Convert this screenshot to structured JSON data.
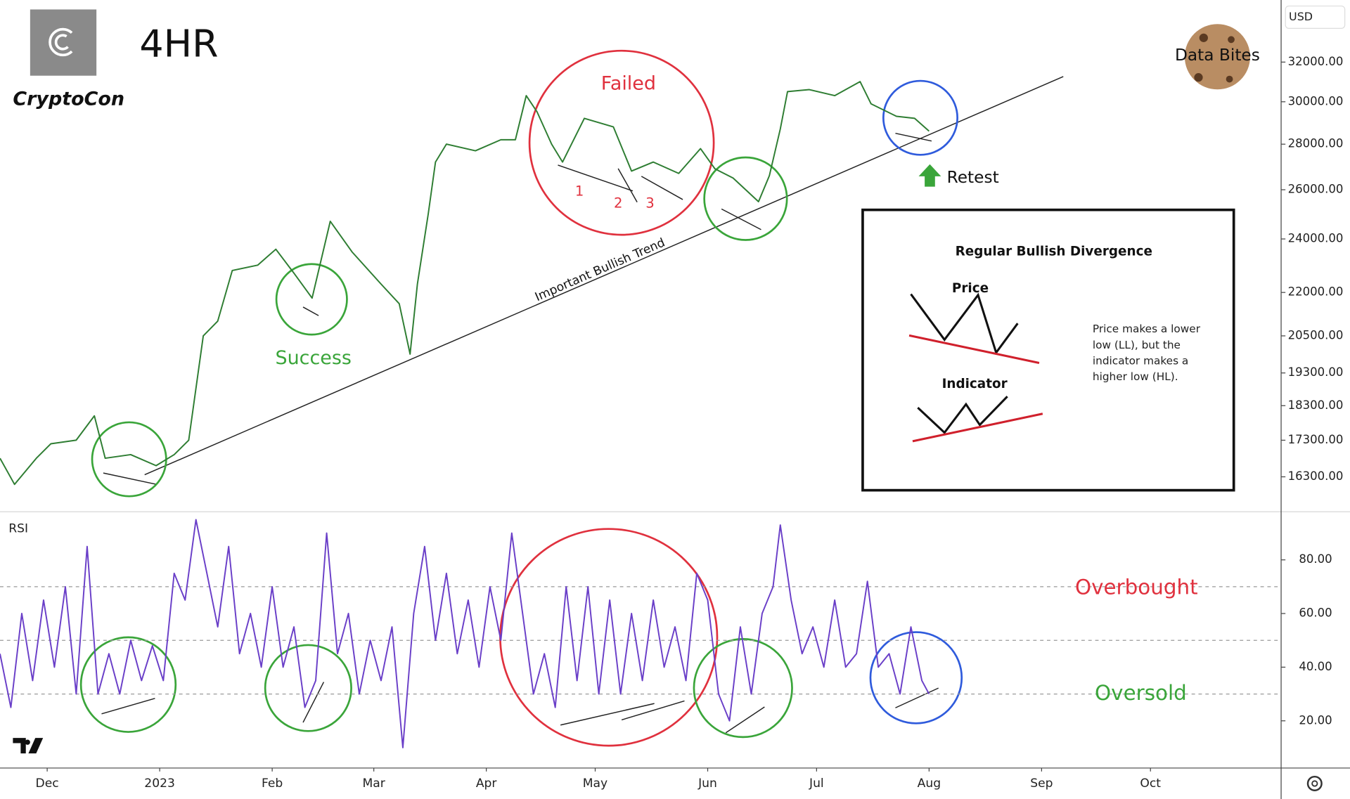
{
  "header": {
    "timeframe": "4HR",
    "author": "CryptoCon",
    "brand": "Data Bites",
    "currency": "USD"
  },
  "chart_data": [
    {
      "type": "line",
      "color": "#2e7d32",
      "log_scale": true,
      "x": [
        -13,
        -9,
        -3,
        1,
        8,
        13,
        16,
        23,
        30,
        35,
        39,
        43,
        47,
        51,
        58,
        63,
        68,
        73,
        78,
        84,
        92,
        97,
        100,
        102,
        105,
        107,
        110,
        118,
        125,
        129,
        132,
        135,
        139,
        142,
        148,
        156,
        161,
        167,
        174,
        180,
        184,
        189,
        196,
        199,
        202,
        204,
        210,
        217,
        224,
        227,
        234,
        239,
        243
      ],
      "values": [
        16800,
        16100,
        16800,
        17200,
        17300,
        18000,
        16800,
        16900,
        16600,
        16900,
        17300,
        20500,
        21000,
        22800,
        23000,
        23600,
        22700,
        21800,
        24700,
        23500,
        22300,
        21600,
        19900,
        22300,
        25000,
        27200,
        28000,
        27700,
        28200,
        28200,
        30300,
        29500,
        28000,
        27200,
        29200,
        28800,
        26800,
        27200,
        26700,
        27800,
        26900,
        26500,
        25500,
        26600,
        28700,
        30500,
        30600,
        30300,
        31000,
        29900,
        29300,
        29200,
        28600
      ],
      "xlim": [
        -13,
        340
      ],
      "ylim": [
        15400,
        35400
      ],
      "yticks": [
        {
          "value": 16300,
          "label": "16300.00"
        },
        {
          "value": 17300,
          "label": "17300.00"
        },
        {
          "value": 18300,
          "label": "18300.00"
        },
        {
          "value": 19300,
          "label": "19300.00"
        },
        {
          "value": 20500,
          "label": "20500.00"
        },
        {
          "value": 22000,
          "label": "22000.00"
        },
        {
          "value": 24000,
          "label": "24000.00"
        },
        {
          "value": 26000,
          "label": "26000.00"
        },
        {
          "value": 28000,
          "label": "28000.00"
        },
        {
          "value": 30000,
          "label": "30000.00"
        },
        {
          "value": 32000,
          "label": "32000.00"
        }
      ],
      "annotations": [
        "Failed",
        "1",
        "2",
        "3",
        "Success",
        "Important Bullish Trend",
        "Retest"
      ]
    },
    {
      "type": "line",
      "title": "RSI",
      "color": "#6a3fc8",
      "x": [
        -13,
        -10,
        -7,
        -4,
        -1,
        2,
        5,
        8,
        11,
        14,
        17,
        20,
        23,
        26,
        29,
        32,
        35,
        38,
        41,
        44,
        47,
        50,
        53,
        56,
        59,
        62,
        65,
        68,
        71,
        74,
        77,
        80,
        83,
        86,
        89,
        92,
        95,
        98,
        101,
        104,
        107,
        110,
        113,
        116,
        119,
        122,
        125,
        128,
        131,
        134,
        137,
        140,
        143,
        146,
        149,
        152,
        155,
        158,
        161,
        164,
        167,
        170,
        173,
        176,
        179,
        182,
        185,
        188,
        191,
        194,
        197,
        200,
        202,
        205,
        208,
        211,
        214,
        217,
        220,
        223,
        226,
        229,
        232,
        235,
        238,
        241,
        243
      ],
      "values": [
        45,
        25,
        60,
        35,
        65,
        40,
        70,
        30,
        85,
        30,
        45,
        30,
        50,
        35,
        48,
        35,
        75,
        65,
        95,
        75,
        55,
        85,
        45,
        60,
        40,
        70,
        40,
        55,
        25,
        35,
        90,
        45,
        60,
        30,
        50,
        35,
        55,
        10,
        60,
        85,
        50,
        75,
        45,
        65,
        40,
        70,
        50,
        90,
        60,
        30,
        45,
        25,
        70,
        35,
        70,
        30,
        65,
        30,
        60,
        35,
        65,
        40,
        55,
        35,
        75,
        65,
        30,
        20,
        55,
        30,
        60,
        70,
        93,
        65,
        45,
        55,
        40,
        65,
        40,
        45,
        72,
        40,
        45,
        30,
        55,
        35,
        30
      ],
      "xlim": [
        -13,
        340
      ],
      "ylim": [
        2.4,
        97.3
      ],
      "yticks": [
        {
          "value": 20,
          "label": "20.00"
        },
        {
          "value": 40,
          "label": "40.00"
        },
        {
          "value": 60,
          "label": "60.00"
        },
        {
          "value": 80,
          "label": "80.00"
        }
      ],
      "hlines": [
        70,
        50,
        30
      ],
      "xticks": [
        {
          "value": 0,
          "label": "Dec"
        },
        {
          "value": 31,
          "label": "2023"
        },
        {
          "value": 62,
          "label": "Feb"
        },
        {
          "value": 90,
          "label": "Mar"
        },
        {
          "value": 121,
          "label": "Apr"
        },
        {
          "value": 151,
          "label": "May"
        },
        {
          "value": 182,
          "label": "Jun"
        },
        {
          "value": 212,
          "label": "Jul"
        },
        {
          "value": 243,
          "label": "Aug"
        },
        {
          "value": 274,
          "label": "Sep"
        },
        {
          "value": 304,
          "label": "Oct"
        }
      ],
      "annotations": [
        "Overbought",
        "Oversold"
      ]
    }
  ],
  "inset": {
    "title": "Regular Bullish Divergence",
    "price_label": "Price",
    "indicator_label": "Indicator",
    "note": [
      "Price makes a lower",
      "low (LL), but the",
      "indicator makes a",
      "higher low (HL)."
    ]
  }
}
